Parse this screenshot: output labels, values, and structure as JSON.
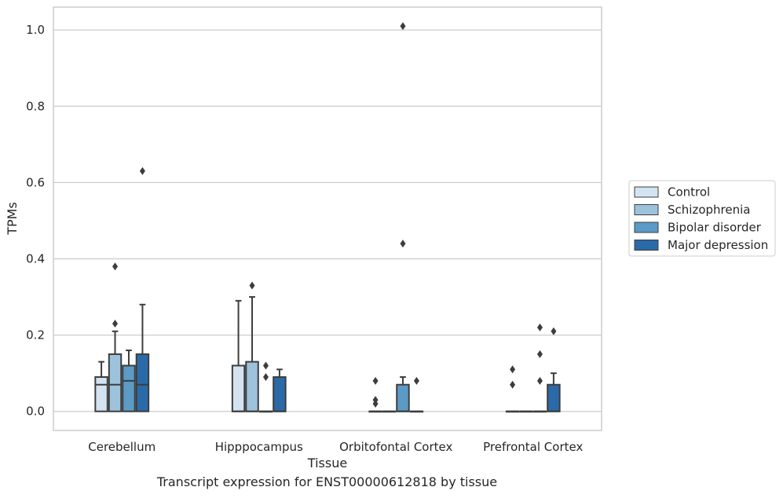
{
  "chart_data": {
    "type": "box",
    "xlabel": "Tissue",
    "ylabel": "TPMs",
    "ylim": [
      -0.05,
      1.06
    ],
    "yticks": [
      0.0,
      0.2,
      0.4,
      0.6,
      0.8,
      1.0
    ],
    "ytick_labels": [
      "0.0",
      "0.2",
      "0.4",
      "0.6",
      "0.8",
      "1.0"
    ],
    "grid": "horizontal",
    "legend_position": "right",
    "categories": [
      "Cerebellum",
      "Hipppocampus",
      "Orbitofontal Cortex",
      "Prefrontal Cortex"
    ],
    "series": [
      {
        "name": "Control",
        "color": "#d4e3f1",
        "boxes": [
          {
            "q1": 0.0,
            "median": 0.07,
            "q3": 0.09,
            "whisker_low": 0.0,
            "whisker_high": 0.13,
            "outliers": []
          },
          {
            "q1": 0.0,
            "median": 0.0,
            "q3": 0.12,
            "whisker_low": 0.0,
            "whisker_high": 0.29,
            "outliers": []
          },
          {
            "q1": 0.0,
            "median": 0.0,
            "q3": 0.0,
            "whisker_low": 0.0,
            "whisker_high": 0.0,
            "outliers": [
              0.02,
              0.03,
              0.08
            ]
          },
          {
            "q1": 0.0,
            "median": 0.0,
            "q3": 0.0,
            "whisker_low": 0.0,
            "whisker_high": 0.0,
            "outliers": [
              0.07,
              0.11
            ]
          }
        ]
      },
      {
        "name": "Schizophrenia",
        "color": "#9dc3dc",
        "boxes": [
          {
            "q1": 0.0,
            "median": 0.07,
            "q3": 0.15,
            "whisker_low": 0.0,
            "whisker_high": 0.21,
            "outliers": [
              0.23,
              0.38
            ]
          },
          {
            "q1": 0.0,
            "median": 0.0,
            "q3": 0.13,
            "whisker_low": 0.0,
            "whisker_high": 0.3,
            "outliers": [
              0.33
            ]
          },
          {
            "q1": 0.0,
            "median": 0.0,
            "q3": 0.0,
            "whisker_low": 0.0,
            "whisker_high": 0.0,
            "outliers": []
          },
          {
            "q1": 0.0,
            "median": 0.0,
            "q3": 0.0,
            "whisker_low": 0.0,
            "whisker_high": 0.0,
            "outliers": []
          }
        ]
      },
      {
        "name": "Bipolar disorder",
        "color": "#5b9bc6",
        "boxes": [
          {
            "q1": 0.0,
            "median": 0.08,
            "q3": 0.12,
            "whisker_low": 0.0,
            "whisker_high": 0.16,
            "outliers": []
          },
          {
            "q1": 0.0,
            "median": 0.0,
            "q3": 0.0,
            "whisker_low": 0.0,
            "whisker_high": 0.0,
            "outliers": [
              0.09,
              0.12
            ]
          },
          {
            "q1": 0.0,
            "median": 0.0,
            "q3": 0.07,
            "whisker_low": 0.0,
            "whisker_high": 0.09,
            "outliers": [
              0.44,
              1.01
            ]
          },
          {
            "q1": 0.0,
            "median": 0.0,
            "q3": 0.0,
            "whisker_low": 0.0,
            "whisker_high": 0.0,
            "outliers": [
              0.08,
              0.15,
              0.22
            ]
          }
        ]
      },
      {
        "name": "Major depression",
        "color": "#2b6aa8",
        "boxes": [
          {
            "q1": 0.0,
            "median": 0.07,
            "q3": 0.15,
            "whisker_low": 0.0,
            "whisker_high": 0.28,
            "outliers": [
              0.63
            ]
          },
          {
            "q1": 0.0,
            "median": 0.0,
            "q3": 0.09,
            "whisker_low": 0.0,
            "whisker_high": 0.11,
            "outliers": []
          },
          {
            "q1": 0.0,
            "median": 0.0,
            "q3": 0.0,
            "whisker_low": 0.0,
            "whisker_high": 0.0,
            "outliers": [
              0.08
            ]
          },
          {
            "q1": 0.0,
            "median": 0.0,
            "q3": 0.07,
            "whisker_low": 0.0,
            "whisker_high": 0.1,
            "outliers": [
              0.21
            ]
          }
        ]
      }
    ]
  },
  "caption": "Transcript expression for ENST00000612818 by tissue"
}
